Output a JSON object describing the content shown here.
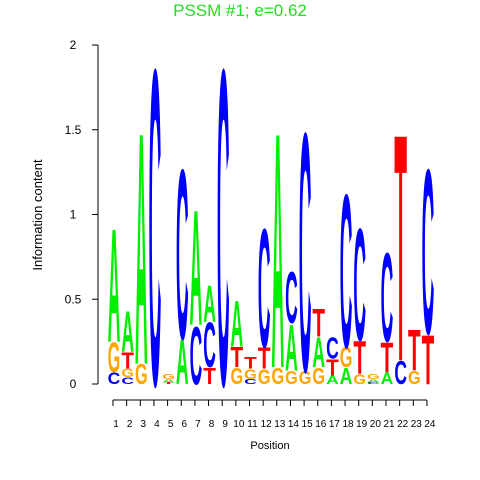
{
  "chart_data": {
    "type": "logo",
    "title": "PSSM #1; e=0.62",
    "xlabel": "Position",
    "ylabel": "Information content",
    "categories": [
      "1",
      "2",
      "3",
      "4",
      "5",
      "6",
      "7",
      "8",
      "9",
      "10",
      "11",
      "12",
      "13",
      "14",
      "15",
      "16",
      "17",
      "18",
      "19",
      "20",
      "21",
      "22",
      "23",
      "24"
    ],
    "colors": {
      "A": "#00ee00",
      "C": "#0000ff",
      "G": "#ffa500",
      "T": "#ff0000"
    },
    "stacks": [
      [
        {
          "letter": "C",
          "value": 0.07
        },
        {
          "letter": "G",
          "value": 0.18
        },
        {
          "letter": "A",
          "value": 0.69
        }
      ],
      [
        {
          "letter": "C",
          "value": 0.04
        },
        {
          "letter": "G",
          "value": 0.05
        },
        {
          "letter": "T",
          "value": 0.1
        },
        {
          "letter": "A",
          "value": 0.25
        }
      ],
      [
        {
          "letter": "G",
          "value": 0.12
        },
        {
          "letter": "A",
          "value": 1.41
        }
      ],
      [
        {
          "letter": "C",
          "value": 1.92
        }
      ],
      [
        {
          "letter": "T",
          "value": 0.01
        },
        {
          "letter": "A",
          "value": 0.02
        },
        {
          "letter": "G",
          "value": 0.03
        }
      ],
      [
        {
          "letter": "A",
          "value": 0.27
        },
        {
          "letter": "C",
          "value": 1.03
        }
      ],
      [
        {
          "letter": "C",
          "value": 0.35
        },
        {
          "letter": "A",
          "value": 0.7
        }
      ],
      [
        {
          "letter": "T",
          "value": 0.1
        },
        {
          "letter": "C",
          "value": 0.27
        },
        {
          "letter": "A",
          "value": 0.22
        }
      ],
      [
        {
          "letter": "C",
          "value": 1.92
        }
      ],
      [
        {
          "letter": "G",
          "value": 0.1
        },
        {
          "letter": "T",
          "value": 0.12
        },
        {
          "letter": "A",
          "value": 0.28
        }
      ],
      [
        {
          "letter": "C",
          "value": 0.03
        },
        {
          "letter": "G",
          "value": 0.06
        },
        {
          "letter": "T",
          "value": 0.07
        }
      ],
      [
        {
          "letter": "G",
          "value": 0.09
        },
        {
          "letter": "T",
          "value": 0.13
        },
        {
          "letter": "C",
          "value": 0.72
        }
      ],
      [
        {
          "letter": "G",
          "value": 0.1
        },
        {
          "letter": "A",
          "value": 1.43
        }
      ],
      [
        {
          "letter": "G",
          "value": 0.08
        },
        {
          "letter": "A",
          "value": 0.28
        },
        {
          "letter": "C",
          "value": 0.31
        }
      ],
      [
        {
          "letter": "G",
          "value": 0.08
        },
        {
          "letter": "C",
          "value": 1.45
        }
      ],
      [
        {
          "letter": "G",
          "value": 0.1
        },
        {
          "letter": "A",
          "value": 0.18
        },
        {
          "letter": "T",
          "value": 0.17
        }
      ],
      [
        {
          "letter": "A",
          "value": 0.05
        },
        {
          "letter": "T",
          "value": 0.1
        },
        {
          "letter": "C",
          "value": 0.13
        }
      ],
      [
        {
          "letter": "A",
          "value": 0.1
        },
        {
          "letter": "G",
          "value": 0.12
        },
        {
          "letter": "C",
          "value": 0.93
        }
      ],
      [
        {
          "letter": "G",
          "value": 0.06
        },
        {
          "letter": "T",
          "value": 0.2
        },
        {
          "letter": "C",
          "value": 0.68
        }
      ],
      [
        {
          "letter": "C",
          "value": 0.01
        },
        {
          "letter": "A",
          "value": 0.02
        },
        {
          "letter": "G",
          "value": 0.03
        }
      ],
      [
        {
          "letter": "A",
          "value": 0.07
        },
        {
          "letter": "T",
          "value": 0.18
        },
        {
          "letter": "C",
          "value": 0.54
        }
      ],
      [
        {
          "letter": "C",
          "value": 0.14
        },
        {
          "letter": "T",
          "value": 1.38
        }
      ],
      [
        {
          "letter": "G",
          "value": 0.08
        },
        {
          "letter": "T",
          "value": 0.25
        }
      ],
      [
        {
          "letter": "T",
          "value": 0.3
        },
        {
          "letter": "C",
          "value": 1.0
        }
      ]
    ],
    "ylim": [
      0,
      2
    ],
    "yticks": [
      0,
      0.5,
      1,
      1.5,
      2
    ]
  }
}
